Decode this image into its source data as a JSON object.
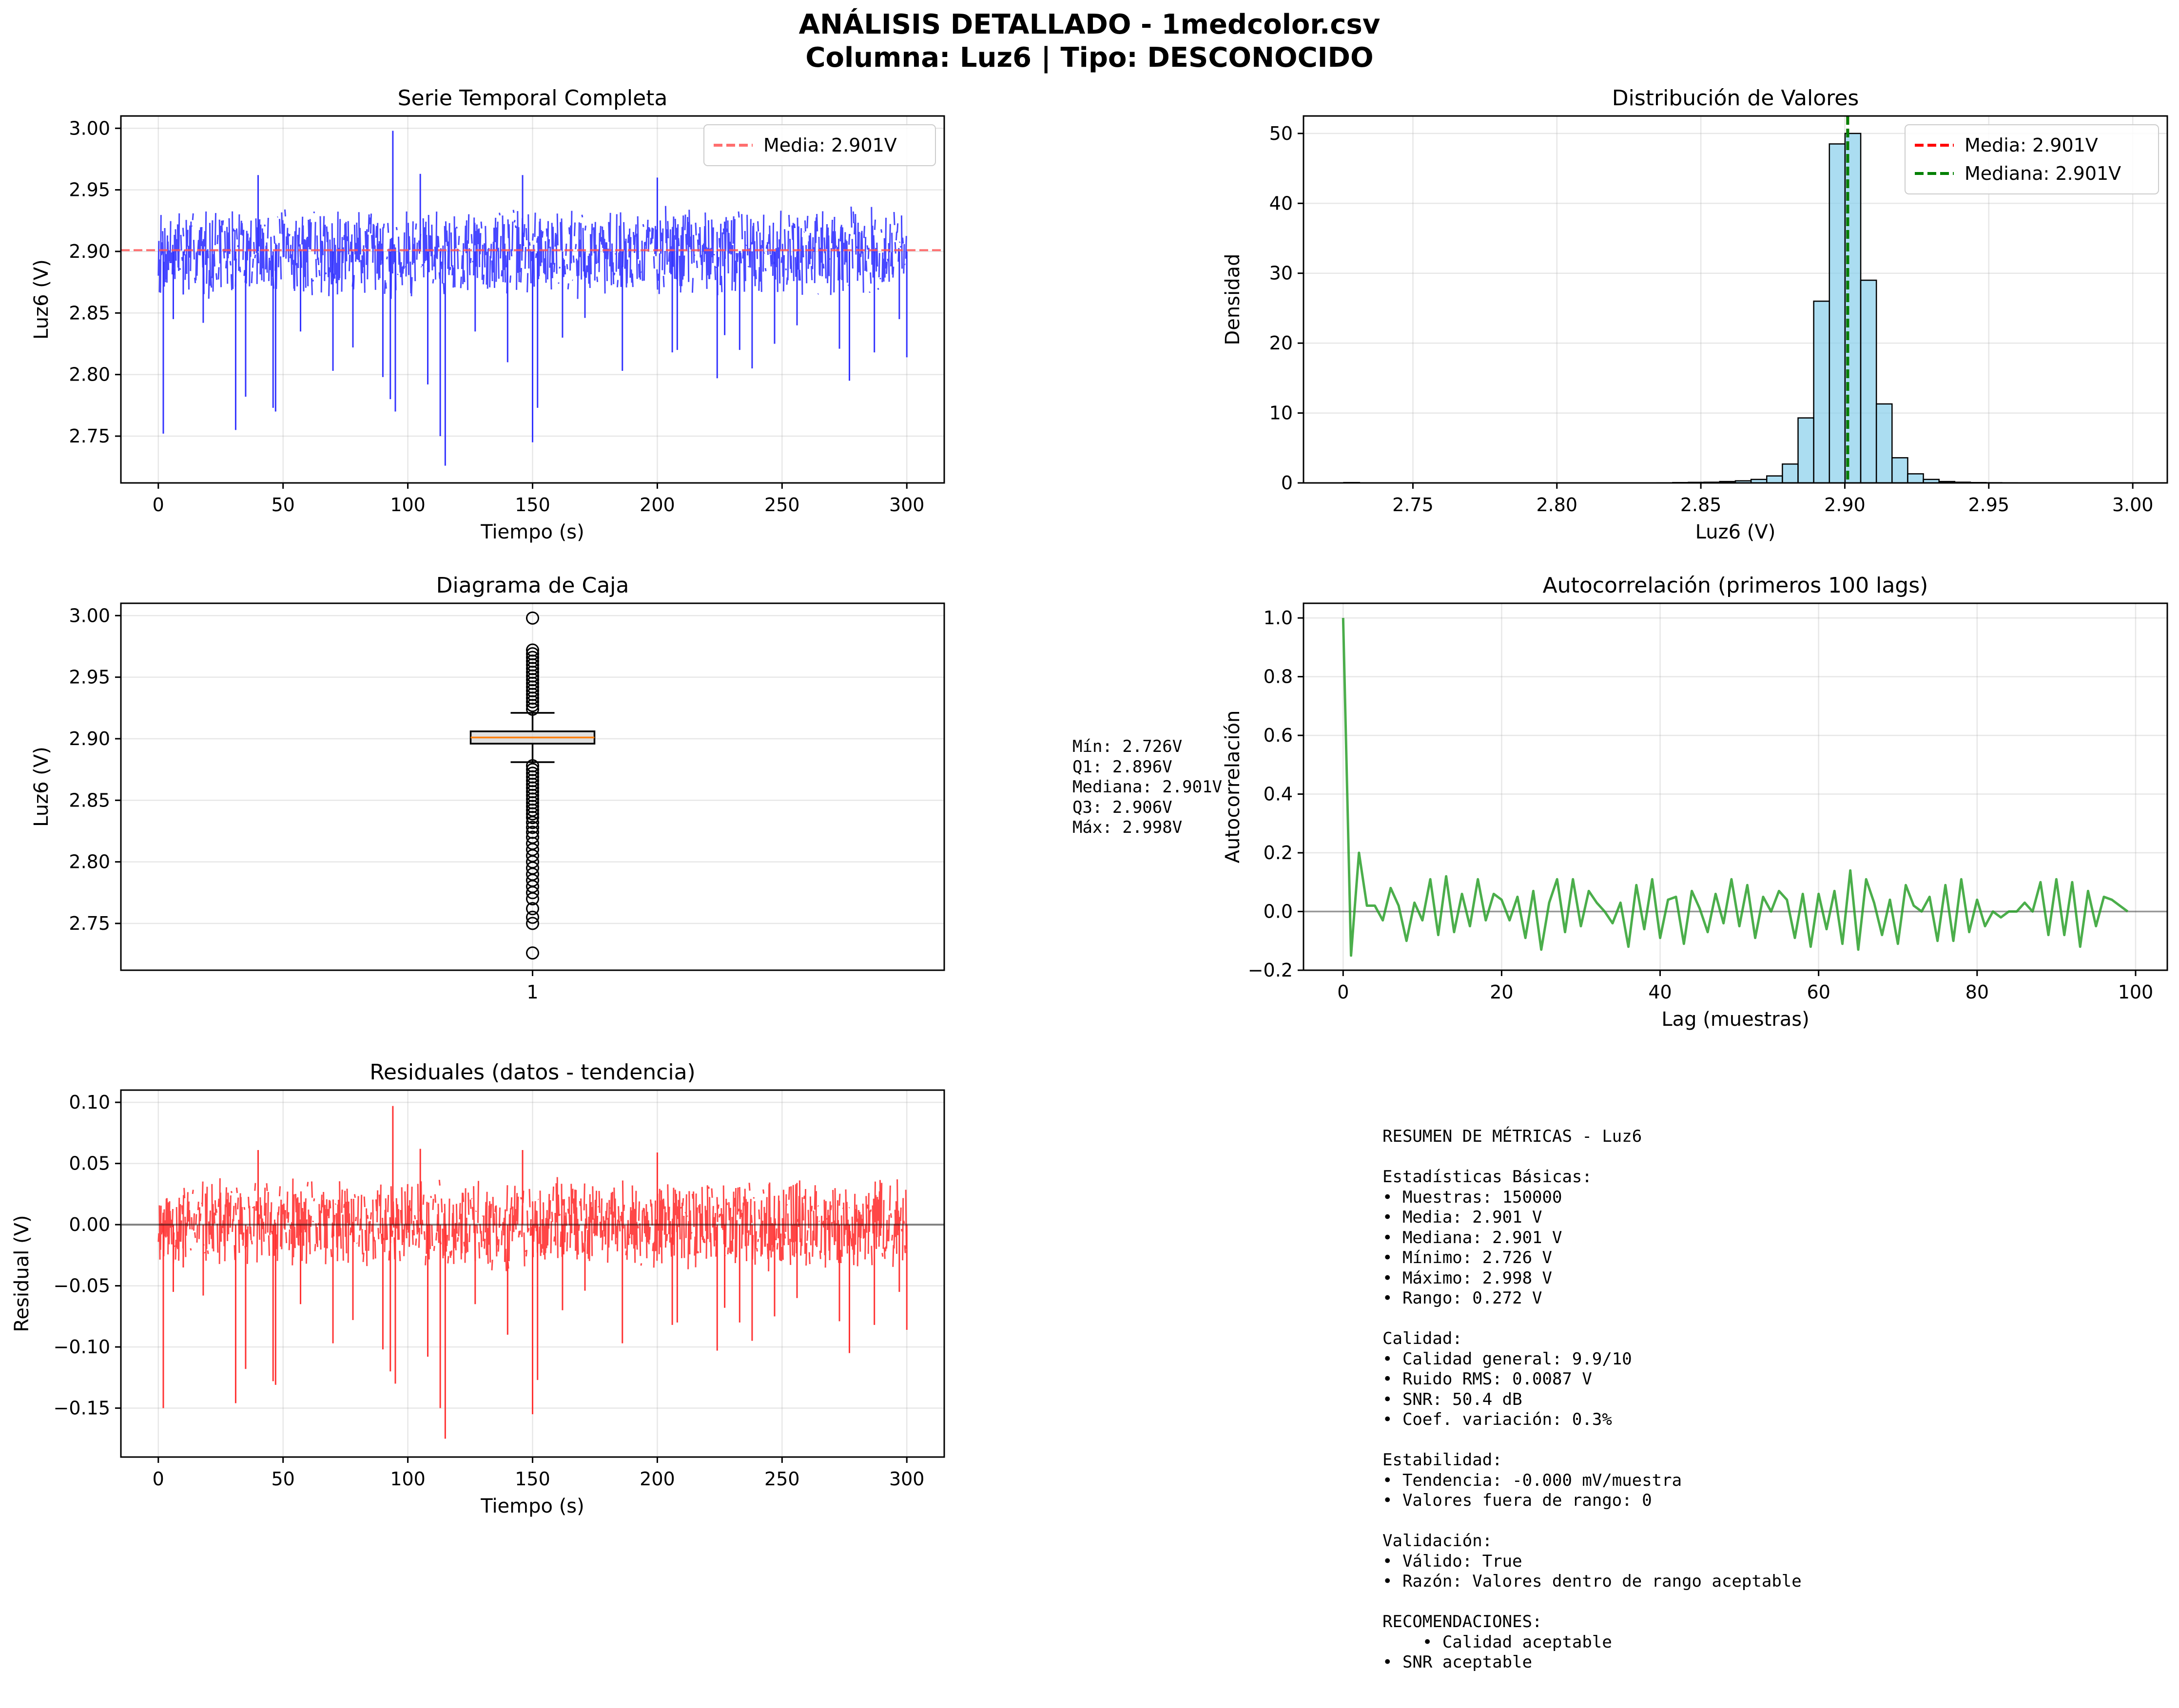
{
  "figure": {
    "title_line1": "ANÁLISIS DETALLADO - 1medcolor.csv",
    "title_line2": "Columna: Luz6 | Tipo: DESCONOCIDO"
  },
  "chart_data": [
    {
      "id": "timeseries",
      "type": "line",
      "title": "Serie Temporal Completa",
      "xlabel": "Tiempo (s)",
      "ylabel": "Luz6 (V)",
      "xlim": [
        -15,
        315
      ],
      "ylim": [
        2.712,
        3.01
      ],
      "xticks": [
        0,
        50,
        100,
        150,
        200,
        250,
        300
      ],
      "yticks": [
        2.75,
        2.8,
        2.85,
        2.9,
        2.95,
        3.0
      ],
      "ytick_labels": [
        "2.75",
        "2.80",
        "2.85",
        "2.90",
        "2.95",
        "3.00"
      ],
      "grid": true,
      "color": "#3333ff",
      "band": {
        "x_start": 0,
        "x_end": 300,
        "typical_low": 2.872,
        "typical_high": 2.928
      },
      "spikes_down": [
        [
          2,
          2.752
        ],
        [
          6,
          2.845
        ],
        [
          10,
          2.865
        ],
        [
          18,
          2.842
        ],
        [
          31,
          2.755
        ],
        [
          35,
          2.782
        ],
        [
          46,
          2.773
        ],
        [
          47,
          2.77
        ],
        [
          57,
          2.835
        ],
        [
          70,
          2.803
        ],
        [
          78,
          2.822
        ],
        [
          90,
          2.798
        ],
        [
          93,
          2.78
        ],
        [
          95,
          2.77
        ],
        [
          108,
          2.792
        ],
        [
          113,
          2.75
        ],
        [
          115,
          2.726
        ],
        [
          127,
          2.835
        ],
        [
          140,
          2.81
        ],
        [
          150,
          2.745
        ],
        [
          152,
          2.773
        ],
        [
          162,
          2.83
        ],
        [
          171,
          2.846
        ],
        [
          186,
          2.803
        ],
        [
          206,
          2.818
        ],
        [
          208,
          2.82
        ],
        [
          224,
          2.797
        ],
        [
          227,
          2.832
        ],
        [
          233,
          2.82
        ],
        [
          238,
          2.805
        ],
        [
          247,
          2.825
        ],
        [
          256,
          2.84
        ],
        [
          273,
          2.821
        ],
        [
          277,
          2.795
        ],
        [
          287,
          2.818
        ],
        [
          297,
          2.845
        ],
        [
          300,
          2.814
        ]
      ],
      "spikes_up": [
        [
          94,
          2.998
        ],
        [
          40,
          2.962
        ],
        [
          105,
          2.963
        ],
        [
          146,
          2.962
        ],
        [
          200,
          2.96
        ]
      ],
      "mean_line": {
        "value": 2.901,
        "label": "Media: 2.901V",
        "color": "#ff5555"
      },
      "legend_position": "upper right"
    },
    {
      "id": "histogram",
      "type": "bar",
      "title": "Distribución de Valores",
      "xlabel": "Luz6 (V)",
      "ylabel": "Densidad",
      "xlim": [
        2.712,
        3.012
      ],
      "ylim": [
        0,
        52.5
      ],
      "xticks": [
        2.75,
        2.8,
        2.85,
        2.9,
        2.95,
        3.0
      ],
      "xtick_labels": [
        "2.75",
        "2.80",
        "2.85",
        "2.90",
        "2.95",
        "3.00"
      ],
      "yticks": [
        0,
        10,
        20,
        30,
        40,
        50
      ],
      "grid": true,
      "bar_color": "#87ceeb",
      "bin_start": 2.726,
      "bin_width": 0.00544,
      "values": [
        0.05,
        0,
        0,
        0,
        0,
        0,
        0,
        0,
        0,
        0,
        0,
        0,
        0,
        0,
        0,
        0,
        0,
        0,
        0,
        0,
        0.02,
        0.05,
        0.08,
        0.1,
        0.2,
        0.3,
        0.5,
        1.0,
        2.7,
        9.3,
        26.0,
        48.5,
        50.0,
        29.0,
        11.3,
        3.6,
        1.3,
        0.5,
        0.2,
        0.1,
        0.05,
        0.03,
        0.02,
        0.01,
        0.01,
        0.01,
        0.01,
        0.01,
        0.01,
        0.01
      ],
      "vlines": [
        {
          "value": 2.901,
          "label": "Media: 2.901V",
          "color": "#ff0000"
        },
        {
          "value": 2.901,
          "label": "Mediana: 2.901V",
          "color": "#008000"
        }
      ],
      "legend_position": "upper right"
    },
    {
      "id": "boxplot",
      "type": "box",
      "title": "Diagrama de Caja",
      "ylabel": "Luz6 (V)",
      "xticks": [
        1
      ],
      "xtick_labels": [
        "1"
      ],
      "ylim": [
        2.712,
        3.01
      ],
      "yticks": [
        2.75,
        2.8,
        2.85,
        2.9,
        2.95,
        3.0
      ],
      "ytick_labels": [
        "2.75",
        "2.80",
        "2.85",
        "2.90",
        "2.95",
        "3.00"
      ],
      "grid": true,
      "box_color": "#d3d3d3",
      "min": 2.726,
      "q1": 2.896,
      "median": 2.901,
      "q3": 2.906,
      "max": 2.998,
      "whisker_low": 2.881,
      "whisker_high": 2.921,
      "outliers": [
        2.998,
        2.972,
        2.969,
        2.966,
        2.963,
        2.96,
        2.957,
        2.954,
        2.951,
        2.948,
        2.945,
        2.942,
        2.939,
        2.936,
        2.933,
        2.93,
        2.927,
        2.924,
        2.878,
        2.875,
        2.872,
        2.869,
        2.866,
        2.863,
        2.86,
        2.857,
        2.854,
        2.851,
        2.848,
        2.845,
        2.842,
        2.839,
        2.836,
        2.832,
        2.828,
        2.824,
        2.82,
        2.815,
        2.81,
        2.805,
        2.8,
        2.795,
        2.79,
        2.785,
        2.78,
        2.775,
        2.77,
        2.762,
        2.755,
        2.75,
        2.726
      ]
    },
    {
      "id": "autocorr",
      "type": "line",
      "title": "Autocorrelación (primeros 100 lags)",
      "xlabel": "Lag (muestras)",
      "ylabel": "Autocorrelación",
      "xlim": [
        -5,
        104
      ],
      "ylim": [
        -0.2,
        1.05
      ],
      "xticks": [
        0,
        20,
        40,
        60,
        80,
        100
      ],
      "yticks": [
        -0.2,
        0.0,
        0.2,
        0.4,
        0.6,
        0.8,
        1.0
      ],
      "ytick_labels": [
        "−0.2",
        "0.0",
        "0.2",
        "0.4",
        "0.6",
        "0.8",
        "1.0"
      ],
      "grid": true,
      "color": "#2ca02c",
      "zero_line": 0,
      "values": [
        1.0,
        -0.15,
        0.2,
        0.02,
        0.02,
        -0.03,
        0.08,
        0.02,
        -0.1,
        0.03,
        -0.03,
        0.11,
        -0.08,
        0.12,
        -0.07,
        0.06,
        -0.05,
        0.11,
        -0.03,
        0.06,
        0.04,
        -0.03,
        0.05,
        -0.09,
        0.07,
        -0.13,
        0.03,
        0.11,
        -0.07,
        0.11,
        -0.05,
        0.07,
        0.03,
        0.0,
        -0.04,
        0.03,
        -0.12,
        0.09,
        -0.06,
        0.11,
        -0.09,
        0.04,
        0.05,
        -0.11,
        0.07,
        0.01,
        -0.07,
        0.06,
        -0.04,
        0.11,
        -0.05,
        0.09,
        -0.09,
        0.05,
        0.0,
        0.07,
        0.04,
        -0.09,
        0.06,
        -0.12,
        0.06,
        -0.06,
        0.07,
        -0.11,
        0.14,
        -0.13,
        0.11,
        0.03,
        -0.08,
        0.04,
        -0.11,
        0.09,
        0.02,
        0.0,
        0.05,
        -0.1,
        0.09,
        -0.1,
        0.11,
        -0.07,
        0.04,
        -0.05,
        0.0,
        -0.02,
        0.0,
        0.0,
        0.03,
        0.0,
        0.1,
        -0.08,
        0.11,
        -0.08,
        0.1,
        -0.12,
        0.07,
        -0.05,
        0.05,
        0.04,
        0.02,
        0.0
      ]
    },
    {
      "id": "residuals",
      "type": "line",
      "title": "Residuales (datos - tendencia)",
      "xlabel": "Tiempo (s)",
      "ylabel": "Residual (V)",
      "xlim": [
        -15,
        315
      ],
      "ylim": [
        -0.19,
        0.11
      ],
      "xticks": [
        0,
        50,
        100,
        150,
        200,
        250,
        300
      ],
      "yticks": [
        -0.15,
        -0.1,
        -0.05,
        0.0,
        0.05,
        0.1
      ],
      "ytick_labels": [
        "−0.15",
        "−0.10",
        "−0.05",
        "0.00",
        "0.05",
        "0.10"
      ],
      "grid": true,
      "color": "#ff3333",
      "zero_line": 0,
      "band": {
        "x_start": 0,
        "x_end": 300,
        "typical_low": -0.028,
        "typical_high": 0.028
      },
      "spikes_down": [
        [
          2,
          -0.15
        ],
        [
          6,
          -0.055
        ],
        [
          10,
          -0.035
        ],
        [
          18,
          -0.058
        ],
        [
          31,
          -0.146
        ],
        [
          35,
          -0.118
        ],
        [
          46,
          -0.128
        ],
        [
          47,
          -0.131
        ],
        [
          57,
          -0.065
        ],
        [
          70,
          -0.097
        ],
        [
          78,
          -0.078
        ],
        [
          90,
          -0.102
        ],
        [
          93,
          -0.12
        ],
        [
          95,
          -0.13
        ],
        [
          108,
          -0.108
        ],
        [
          113,
          -0.15
        ],
        [
          115,
          -0.175
        ],
        [
          127,
          -0.065
        ],
        [
          140,
          -0.09
        ],
        [
          150,
          -0.155
        ],
        [
          152,
          -0.127
        ],
        [
          162,
          -0.07
        ],
        [
          171,
          -0.054
        ],
        [
          186,
          -0.097
        ],
        [
          206,
          -0.082
        ],
        [
          208,
          -0.08
        ],
        [
          224,
          -0.103
        ],
        [
          227,
          -0.068
        ],
        [
          233,
          -0.08
        ],
        [
          238,
          -0.095
        ],
        [
          247,
          -0.075
        ],
        [
          256,
          -0.06
        ],
        [
          273,
          -0.079
        ],
        [
          277,
          -0.105
        ],
        [
          287,
          -0.082
        ],
        [
          297,
          -0.055
        ],
        [
          300,
          -0.086
        ]
      ],
      "spikes_up": [
        [
          94,
          0.097
        ],
        [
          40,
          0.061
        ],
        [
          105,
          0.062
        ],
        [
          146,
          0.061
        ],
        [
          200,
          0.059
        ]
      ]
    }
  ],
  "box_stats_text": "Mín: 2.726V\nQ1: 2.896V\nMediana: 2.901V\nQ3: 2.906V\nMáx: 2.998V",
  "summary_text": "RESUMEN DE MÉTRICAS - Luz6\n\nEstadísticas Básicas:\n• Muestras: 150000\n• Media: 2.901 V\n• Mediana: 2.901 V\n• Mínimo: 2.726 V\n• Máximo: 2.998 V\n• Rango: 0.272 V\n\nCalidad:\n• Calidad general: 9.9/10\n• Ruido RMS: 0.0087 V\n• SNR: 50.4 dB\n• Coef. variación: 0.3%\n\nEstabilidad:\n• Tendencia: -0.000 mV/muestra\n• Valores fuera de rango: 0\n\nValidación:\n• Válido: True\n• Razón: Valores dentro de rango aceptable\n\nRECOMENDACIONES:\n    • Calidad aceptable\n• SNR aceptable"
}
